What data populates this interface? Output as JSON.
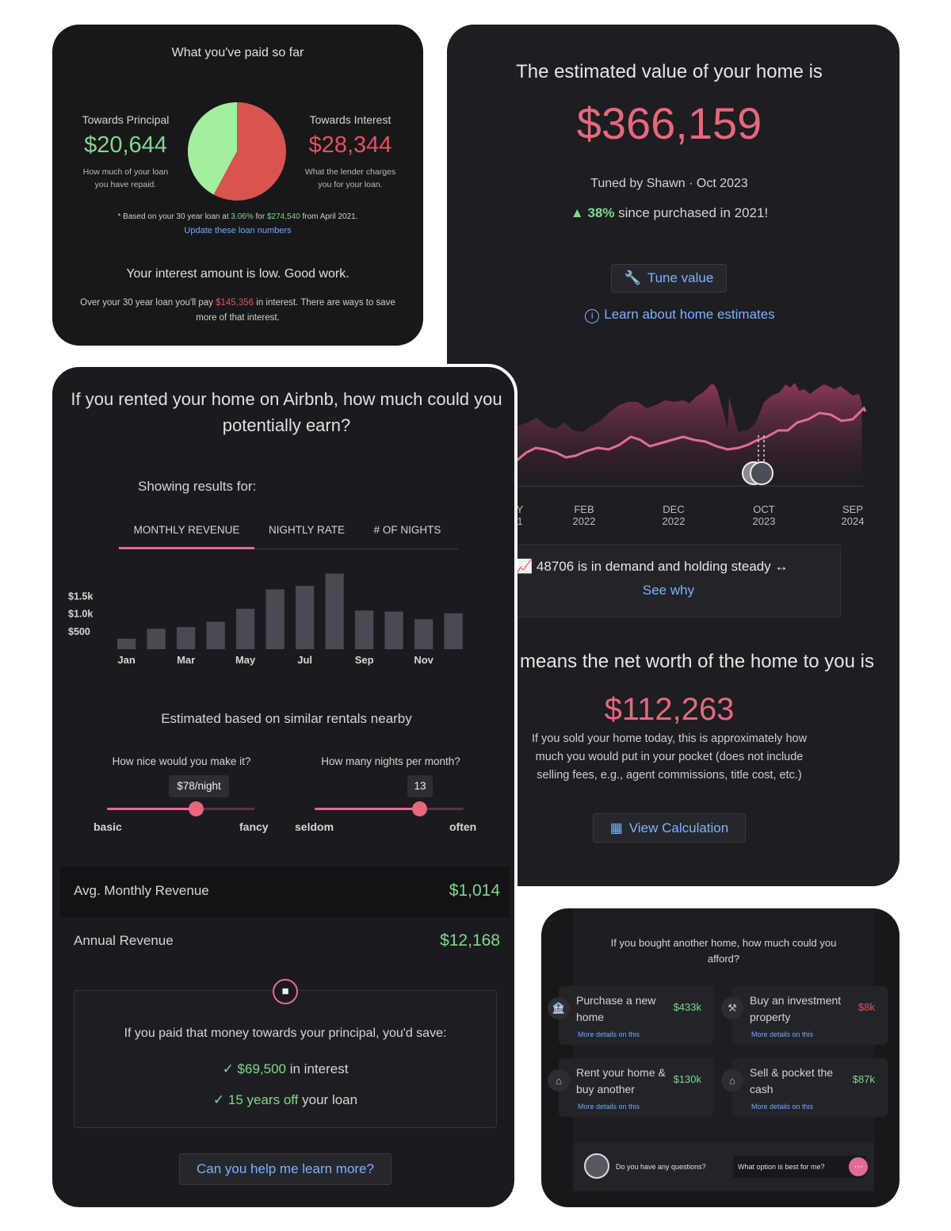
{
  "paid": {
    "title": "What you've paid so far",
    "principal_label": "Towards Principal",
    "principal_value": "$20,644",
    "principal_desc_1": "How much of your loan",
    "principal_desc_2": "you have repaid.",
    "interest_label": "Towards Interest",
    "interest_value": "$28,344",
    "interest_desc_1": "What the lender charges",
    "interest_desc_2": "you for your loan.",
    "pie": {
      "principal": 20644,
      "interest": 28344,
      "principal_color": "#a3eea0",
      "interest_color": "#d9534f"
    },
    "note_1": "* Based on your 30 year loan at ",
    "note_rate": "3.06%",
    "note_2": " for ",
    "note_amount": "$274,540",
    "note_3": " from April 2021.",
    "update_link": "Update these loan numbers",
    "headline": "Your interest amount is low. Good work.",
    "summary_1": "Over your 30 year loan you'll pay ",
    "summary_amount": "$145,356",
    "summary_2": " in interest. There are ways to save",
    "summary_3": "more of that interest."
  },
  "home": {
    "title": "The estimated value of your home is",
    "value": "$366,159",
    "tuned": "Tuned by Shawn · Oct 2023",
    "change_pct": "38%",
    "change_text": " since purchased in 2021!",
    "tune_button": "Tune value",
    "learn_link": "Learn about home estimates",
    "axis_labels": [
      {
        "top": "Y",
        "bottom": "1"
      },
      {
        "top": "FEB",
        "bottom": "2022"
      },
      {
        "top": "DEC",
        "bottom": "2022"
      },
      {
        "top": "OCT",
        "bottom": "2023"
      },
      {
        "top": "SEP",
        "bottom": "2024"
      }
    ],
    "demand_text": "48706 is in demand and holding steady",
    "see_why": "See why",
    "networth_title": "means the net worth of the home to you is",
    "networth_value": "$112,263",
    "networth_desc_1": "If you sold your home today, this is approximately how",
    "networth_desc_2": "much you would put in your pocket (does not include",
    "networth_desc_3": "selling fees, e.g., agent commissions, title cost, etc.)",
    "view_calc": "View Calculation"
  },
  "airbnb": {
    "title_1": "If you rented your home on Airbnb, how much could you",
    "title_2": "potentially earn?",
    "showing": "Showing results for:",
    "tabs": [
      {
        "label": "MONTHLY REVENUE",
        "active": true
      },
      {
        "label": "NIGHTLY RATE",
        "active": false
      },
      {
        "label": "# OF NIGHTS",
        "active": false
      }
    ],
    "estimated": "Estimated based on similar rentals nearby",
    "nice_label": "How nice would you make it?",
    "nice_value": "$78/night",
    "nice_min": "basic",
    "nice_max": "fancy",
    "nice_pct": 0.6,
    "nights_label": "How many nights per month?",
    "nights_value": "13",
    "nights_min": "seldom",
    "nights_max": "often",
    "nights_pct": 0.7,
    "avg_label": "Avg. Monthly Revenue",
    "avg_value": "$1,014",
    "annual_label": "Annual Revenue",
    "annual_value": "$12,168",
    "save_title": "If you paid that money towards your principal, you'd save:",
    "save_interest_value": "$69,500",
    "save_interest_text": " in interest",
    "save_years_value": "15 years off",
    "save_years_text": " your loan",
    "help_button": "Can you help me learn more?"
  },
  "chart_data": {
    "type": "bar",
    "categories": [
      "Jan",
      "Feb",
      "Mar",
      "Apr",
      "May",
      "Jun",
      "Jul",
      "Aug",
      "Sep",
      "Oct",
      "Nov",
      "Dec"
    ],
    "x_tick_labels": [
      "Jan",
      "",
      "Mar",
      "",
      "May",
      "",
      "Jul",
      "",
      "Sep",
      "",
      "Nov",
      ""
    ],
    "values": [
      300,
      580,
      630,
      780,
      1150,
      1700,
      1800,
      2150,
      1100,
      1070,
      850,
      1020
    ],
    "y_ticks": [
      {
        "value": 500,
        "label": "$500"
      },
      {
        "value": 1000,
        "label": "$1.0k"
      },
      {
        "value": 1500,
        "label": "$1.5k"
      }
    ],
    "ylim": [
      0,
      2300
    ],
    "color": "#4a4b52"
  },
  "afford": {
    "title_1": "If you bought another home, how much could you",
    "title_2": "afford?",
    "options": [
      {
        "title": "Purchase a new home",
        "value": "$433k",
        "more": "More details on this",
        "icon": "bank-icon",
        "color": "#7fd98a"
      },
      {
        "title": "Buy an investment property",
        "value": "$8k",
        "more": "More details on this",
        "icon": "tools-icon",
        "color": "#e0545a"
      },
      {
        "title": "Rent your home & buy another",
        "value": "$130k",
        "more": "More details on this",
        "icon": "house-icon",
        "color": "#7fd98a"
      },
      {
        "title": "Sell & pocket the cash",
        "value": "$87k",
        "more": "More details on this",
        "icon": "house-cash-icon",
        "color": "#7fd98a"
      }
    ],
    "question": "Do you have any questions?",
    "chip": "What option is best for me?"
  }
}
